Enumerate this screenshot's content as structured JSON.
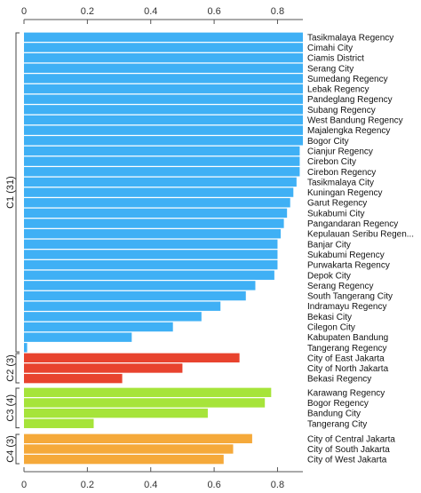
{
  "chart_data": {
    "type": "bar",
    "orientation": "horizontal",
    "xlim": [
      0,
      0.88
    ],
    "x_ticks": [
      "0",
      "0.2",
      "0.4",
      "0.6",
      "0.8"
    ],
    "x_tick_values": [
      0,
      0.2,
      0.4,
      0.6,
      0.8
    ],
    "axis_position": "top-and-bottom",
    "grid": false,
    "legend": "none",
    "clusters": [
      {
        "label": "C1 (31)",
        "color": "#3fb0f5",
        "rows": [
          {
            "name": "Tasikmalaya Regency",
            "value": 0.88
          },
          {
            "name": "Cimahi City",
            "value": 0.88
          },
          {
            "name": "Ciamis District",
            "value": 0.88
          },
          {
            "name": "Serang City",
            "value": 0.88
          },
          {
            "name": "Sumedang Regency",
            "value": 0.88
          },
          {
            "name": "Lebak Regency",
            "value": 0.88
          },
          {
            "name": "Pandeglang Regency",
            "value": 0.88
          },
          {
            "name": "Subang Regency",
            "value": 0.88
          },
          {
            "name": "West Bandung Regency",
            "value": 0.88
          },
          {
            "name": "Majalengka Regency",
            "value": 0.88
          },
          {
            "name": "Bogor City",
            "value": 0.88
          },
          {
            "name": "Cianjur Regency",
            "value": 0.87
          },
          {
            "name": "Cirebon City",
            "value": 0.87
          },
          {
            "name": "Cirebon Regency",
            "value": 0.87
          },
          {
            "name": "Tasikmalaya City",
            "value": 0.86
          },
          {
            "name": "Kuningan Regency",
            "value": 0.85
          },
          {
            "name": "Garut Regency",
            "value": 0.84
          },
          {
            "name": "Sukabumi City",
            "value": 0.83
          },
          {
            "name": "Pangandaran Regency",
            "value": 0.82
          },
          {
            "name": "Kepulauan Seribu Regen...",
            "value": 0.81
          },
          {
            "name": "Banjar City",
            "value": 0.8
          },
          {
            "name": "Sukabumi Regency",
            "value": 0.8
          },
          {
            "name": "Purwakarta Regency",
            "value": 0.8
          },
          {
            "name": "Depok City",
            "value": 0.79
          },
          {
            "name": "Serang Regency",
            "value": 0.73
          },
          {
            "name": "South Tangerang City",
            "value": 0.7
          },
          {
            "name": "Indramayu Regency",
            "value": 0.62
          },
          {
            "name": "Bekasi City",
            "value": 0.56
          },
          {
            "name": "Cilegon City",
            "value": 0.47
          },
          {
            "name": "Kabupaten Bandung",
            "value": 0.34
          },
          {
            "name": "Tangerang Regency",
            "value": 0.01
          }
        ]
      },
      {
        "label": "C2 (3)",
        "color": "#e8432e",
        "rows": [
          {
            "name": "City of East Jakarta",
            "value": 0.68
          },
          {
            "name": "City of North Jakarta",
            "value": 0.5
          },
          {
            "name": "Bekasi Regency",
            "value": 0.31
          }
        ]
      },
      {
        "label": "C3 (4)",
        "color": "#a6e43a",
        "rows": [
          {
            "name": "Karawang Regency",
            "value": 0.78
          },
          {
            "name": "Bogor Regency",
            "value": 0.76
          },
          {
            "name": "Bandung City",
            "value": 0.58
          },
          {
            "name": "Tangerang City",
            "value": 0.22
          }
        ]
      },
      {
        "label": "C4 (3)",
        "color": "#f5a93a",
        "rows": [
          {
            "name": "City of Central Jakarta",
            "value": 0.72
          },
          {
            "name": "City of South Jakarta",
            "value": 0.66
          },
          {
            "name": "City of West Jakarta",
            "value": 0.63
          }
        ]
      }
    ]
  }
}
